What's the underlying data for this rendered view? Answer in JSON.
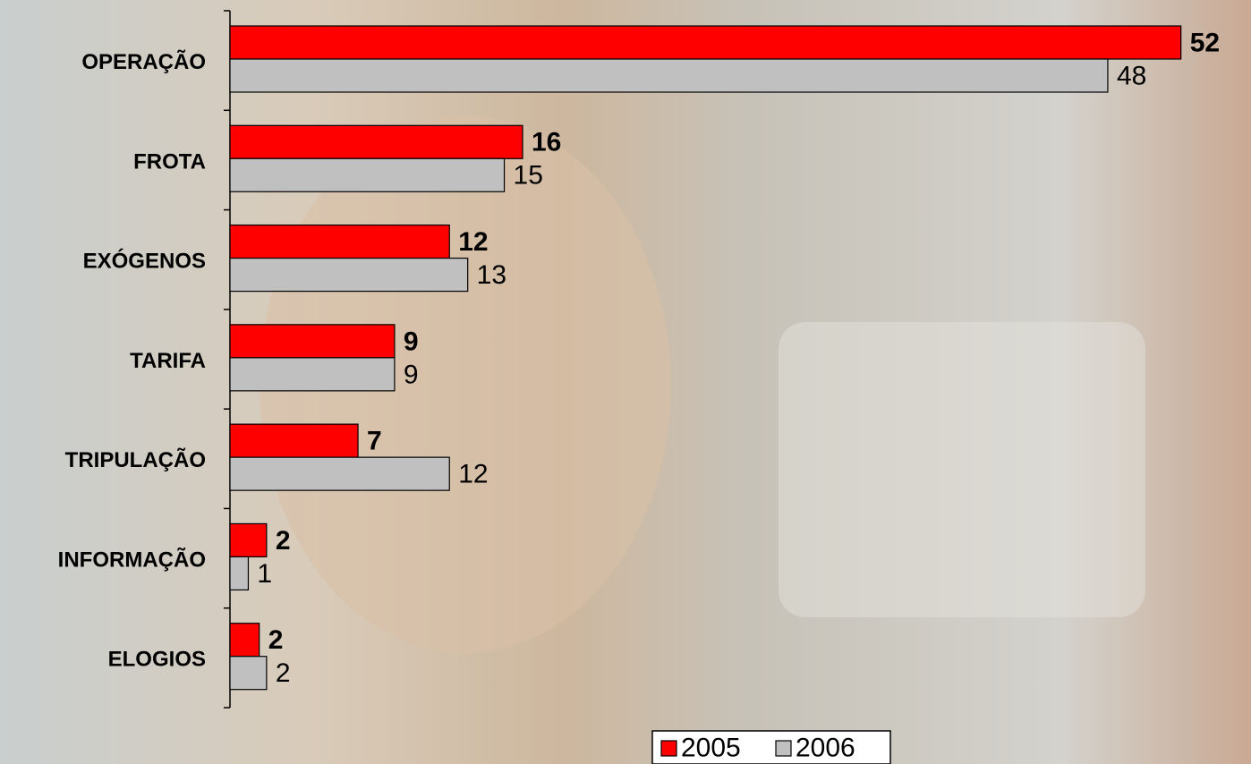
{
  "chart_data": {
    "type": "hbar",
    "categories": [
      "OPERAÇÃO",
      "FROTA",
      "EXÓGENOS",
      "TARIFA",
      "TRIPULAÇÃO",
      "INFORMAÇÃO",
      "ELOGIOS"
    ],
    "series": [
      {
        "name": "2005",
        "color": "#ff0000",
        "values": [
          52,
          16,
          12,
          9,
          7,
          2,
          1.6
        ],
        "value_labels": [
          "52",
          "16",
          "12",
          "9",
          "7",
          "2",
          "2"
        ]
      },
      {
        "name": "2006",
        "color": "#c0c0c0",
        "values": [
          48,
          15,
          13,
          9,
          12,
          1,
          2
        ]
      }
    ],
    "xlim": [
      0,
      55
    ],
    "legend": "bottom"
  }
}
